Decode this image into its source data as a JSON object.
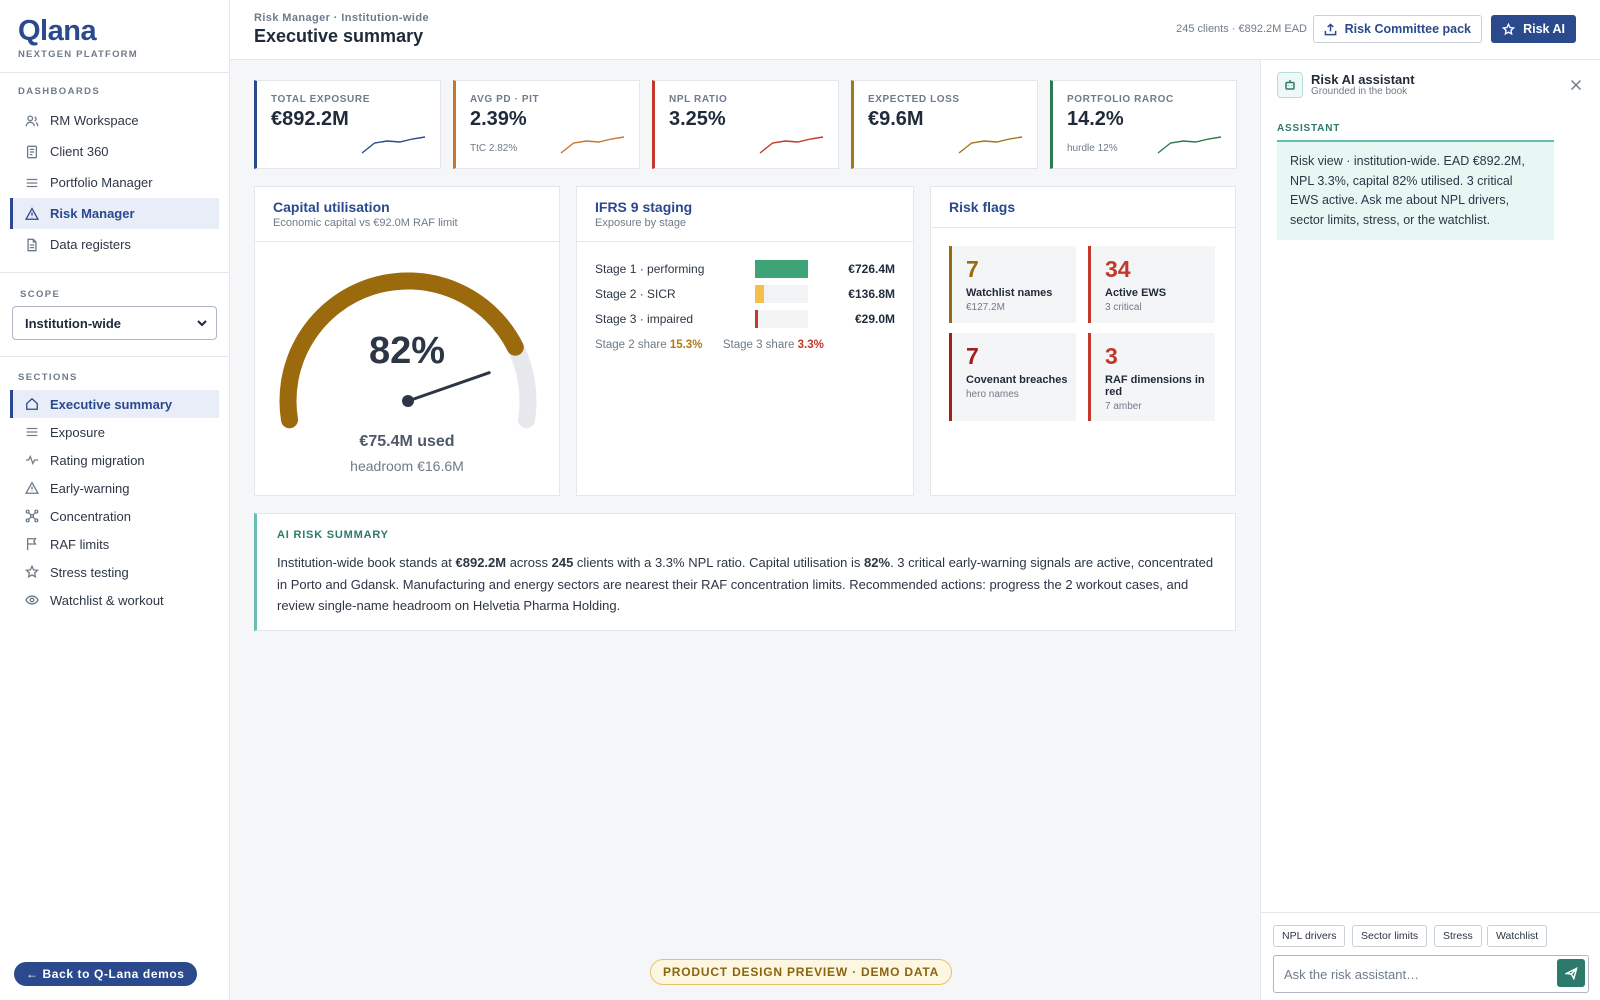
{
  "brand": {
    "logo": "Qlana",
    "subtitle": "NEXTGEN PLATFORM"
  },
  "sidebar": {
    "dashboards_heading": "DASHBOARDS",
    "dashboards": [
      {
        "label": "RM Workspace",
        "icon": "users-icon"
      },
      {
        "label": "Client 360",
        "icon": "document-icon"
      },
      {
        "label": "Portfolio Manager",
        "icon": "lines-icon"
      },
      {
        "label": "Risk Manager",
        "icon": "warning-icon",
        "active": true
      },
      {
        "label": "Data registers",
        "icon": "file-icon"
      }
    ],
    "scope_heading": "SCOPE",
    "scope_value": "Institution-wide",
    "sections_heading": "SECTIONS",
    "sections": [
      {
        "label": "Executive summary",
        "icon": "home-icon",
        "active": true
      },
      {
        "label": "Exposure",
        "icon": "lines-icon"
      },
      {
        "label": "Rating migration",
        "icon": "pulse-icon"
      },
      {
        "label": "Early-warning",
        "icon": "warning-icon"
      },
      {
        "label": "Concentration",
        "icon": "network-icon"
      },
      {
        "label": "RAF limits",
        "icon": "flag-icon"
      },
      {
        "label": "Stress testing",
        "icon": "star-icon"
      },
      {
        "label": "Watchlist & workout",
        "icon": "eye-icon"
      }
    ],
    "back_button": "← Back to Q-Lana demos"
  },
  "header": {
    "breadcrumb": "Risk Manager · Institution-wide",
    "title": "Executive summary",
    "meta": "245 clients · €892.2M EAD",
    "pack_button": "Risk Committee pack",
    "ai_button": "Risk AI"
  },
  "kpis": [
    {
      "label": "TOTAL EXPOSURE",
      "value": "€892.2M",
      "sub": "",
      "color": "#2a4a8d",
      "trend": [
        3,
        8,
        9,
        8.5,
        10,
        11
      ]
    },
    {
      "label": "AVG PD · PIT",
      "value": "2.39%",
      "sub": "TtC 2.82%",
      "color": "#c8762e",
      "trend": [
        3,
        8,
        9,
        8.5,
        10,
        11
      ]
    },
    {
      "label": "NPL RATIO",
      "value": "3.25%",
      "sub": "",
      "color": "#c0392b",
      "trend": [
        3,
        8,
        9,
        8.5,
        10,
        11
      ]
    },
    {
      "label": "EXPECTED LOSS",
      "value": "€9.6M",
      "sub": "",
      "color": "#a07818",
      "trend": [
        3,
        8,
        9,
        8.5,
        10,
        11
      ]
    },
    {
      "label": "PORTFOLIO RAROC",
      "value": "14.2%",
      "sub": "hurdle 12%",
      "color": "#2c7a4e",
      "trend": [
        3,
        8,
        9,
        8.5,
        10,
        11
      ]
    }
  ],
  "capital": {
    "title": "Capital utilisation",
    "subtitle": "Economic capital vs €92.0M RAF limit",
    "utilisation_pct": 82,
    "pct_label": "82%",
    "used_label": "€75.4M used",
    "headroom_label": "headroom €16.6M",
    "arc_color": "#9a6a0c",
    "track_color": "#e6e8ec"
  },
  "ifrs": {
    "title": "IFRS 9 staging",
    "subtitle": "Exposure by stage",
    "stages": [
      {
        "label": "Stage 1 · performing",
        "value": "€726.4M",
        "fraction": 1.0,
        "color": "#3fa378"
      },
      {
        "label": "Stage 2 · SICR",
        "value": "€136.8M",
        "fraction": 0.17,
        "color": "#f5c04a"
      },
      {
        "label": "Stage 3 · impaired",
        "value": "€29.0M",
        "fraction": 0.05,
        "color": "#c0392b"
      }
    ],
    "stage2_share_label": "Stage 2 share",
    "stage2_share": "15.3%",
    "stage3_share_label": "Stage 3 share",
    "stage3_share": "3.3%"
  },
  "flags": {
    "title": "Risk flags",
    "items": [
      {
        "num": "7",
        "title": "Watchlist names",
        "sub": "€127.2M",
        "color": "#9a6a0c"
      },
      {
        "num": "34",
        "title": "Active EWS",
        "sub": "3 critical",
        "color": "#c0392b"
      },
      {
        "num": "7",
        "title": "Covenant breaches",
        "sub": "hero names",
        "color": "#a01f1f"
      },
      {
        "num": "3",
        "title": "RAF dimensions in red",
        "sub": "7 amber",
        "color": "#c0392b"
      }
    ]
  },
  "summary": {
    "heading": "AI RISK SUMMARY",
    "p1": "Institution-wide book stands at ",
    "b1": "€892.2M",
    "p2": " across ",
    "b2": "245",
    "p3": " clients with a 3.3% NPL ratio. Capital utilisation is ",
    "b3": "82%",
    "p4": ". 3 critical early-warning signals are active, concentrated in Porto and Gdansk. Manufacturing and energy sectors are nearest their RAF concentration limits. Recommended actions: progress the 2 workout cases, and review single-name headroom on Helvetia Pharma Holding."
  },
  "preview_badge": "PRODUCT DESIGN PREVIEW · DEMO DATA",
  "ai": {
    "title": "Risk AI assistant",
    "subtitle": "Grounded in the book",
    "role": "ASSISTANT",
    "message": "Risk view · institution-wide. EAD €892.2M, NPL 3.3%, capital 82% utilised. 3 critical EWS active. Ask me about NPL drivers, sector limits, stress, or the watchlist.",
    "chips": [
      "NPL drivers",
      "Sector limits",
      "Stress",
      "Watchlist"
    ],
    "placeholder": "Ask the risk assistant…"
  }
}
